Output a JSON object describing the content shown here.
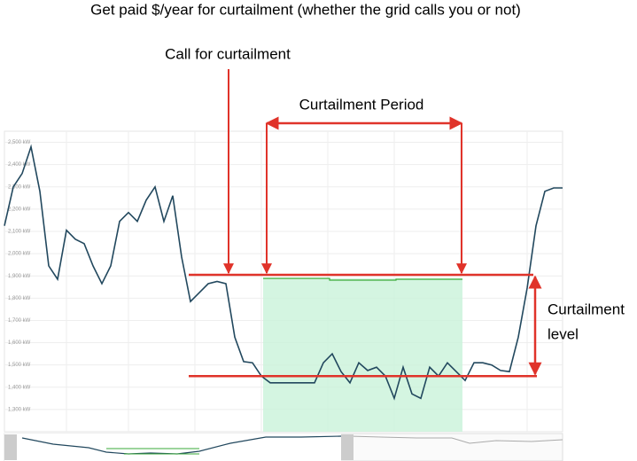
{
  "chart_data": {
    "type": "line",
    "title": "Get paid $/year for curtailment (whether the grid calls you or not)",
    "annotations": {
      "call": "Call for curtailment",
      "period": "Curtailment Period",
      "level": [
        "Curtailment",
        "level"
      ]
    },
    "curtailment_band": {
      "upper": 1905,
      "lower": 1450
    },
    "color": "#22485e",
    "values": [
      2125,
      2300,
      2360,
      2480,
      2280,
      1945,
      1885,
      2105,
      2065,
      2045,
      1945,
      1865,
      1945,
      2145,
      2185,
      2145,
      2240,
      2300,
      2145,
      2260,
      1985,
      1785,
      1825,
      1865,
      1875,
      1865,
      1625,
      1515,
      1510,
      1450,
      1420,
      1420,
      1420,
      1420,
      1420,
      1420,
      1510,
      1550,
      1470,
      1420,
      1510,
      1475,
      1490,
      1450,
      1350,
      1490,
      1370,
      1350,
      1490,
      1450,
      1510,
      1470,
      1430,
      1510,
      1510,
      1500,
      1475,
      1470,
      1625,
      1845,
      2125,
      2280,
      2295,
      2295
    ],
    "ylim": [
      1200,
      2550
    ],
    "yticks": [
      {
        "value": 1300,
        "label": "1,300 kW"
      },
      {
        "value": 1400,
        "label": "1,400 kW"
      },
      {
        "value": 1500,
        "label": "1,500 kW"
      },
      {
        "value": 1600,
        "label": "1,600 kW"
      },
      {
        "value": 1700,
        "label": "1,700 kW"
      },
      {
        "value": 1800,
        "label": "1,800 kW"
      },
      {
        "value": 1900,
        "label": "1,900 kW"
      },
      {
        "value": 2000,
        "label": "2,000 kW"
      },
      {
        "value": 2100,
        "label": "2,100 kW"
      },
      {
        "value": 2200,
        "label": "2,200 kW"
      },
      {
        "value": 2300,
        "label": "2,300 kW"
      },
      {
        "value": 2400,
        "label": "2,400 kW"
      },
      {
        "value": 2500,
        "label": "2,500 kW"
      }
    ],
    "grid": true
  }
}
